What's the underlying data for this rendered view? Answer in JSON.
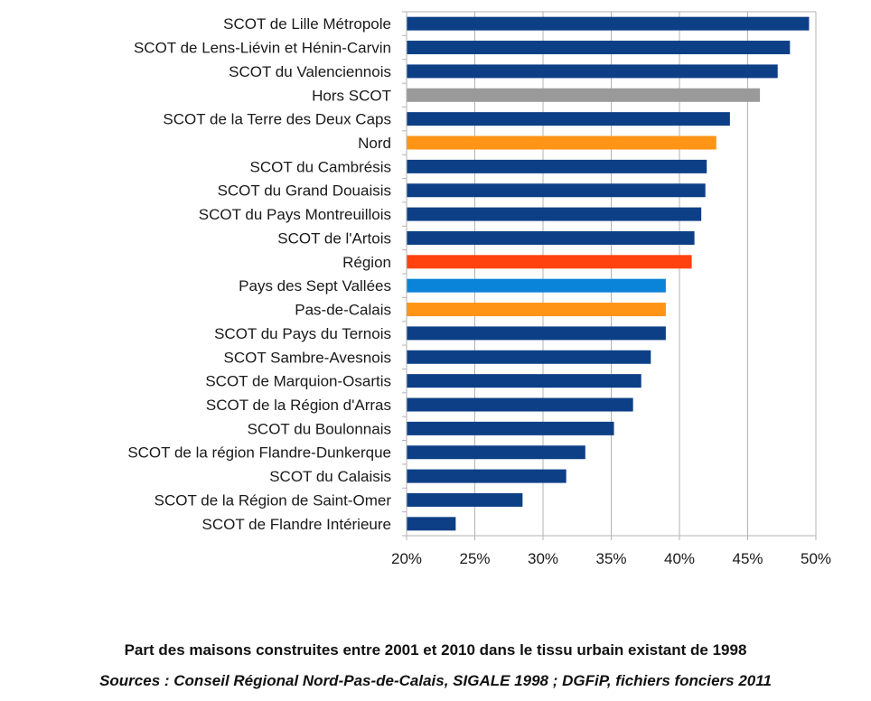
{
  "chart_data": {
    "type": "bar",
    "orientation": "horizontal",
    "categories": [
      "SCOT de Lille Métropole",
      "SCOT de Lens-Liévin et Hénin-Carvin",
      "SCOT du Valenciennois",
      "Hors SCOT",
      "SCOT de la Terre des Deux Caps",
      "Nord",
      "SCOT du Cambrésis",
      "SCOT du Grand Douaisis",
      "SCOT du Pays Montreuillois",
      "SCOT de l'Artois",
      "Région",
      "Pays des Sept Vallées",
      "Pas-de-Calais",
      "SCOT du Pays du Ternois",
      "SCOT Sambre-Avesnois",
      "SCOT de Marquion-Osartis",
      "SCOT de la Région d'Arras",
      "SCOT du Boulonnais",
      "SCOT de la région Flandre-Dunkerque",
      "SCOT du Calaisis",
      "SCOT de la Région de Saint-Omer",
      "SCOT de Flandre Intérieure"
    ],
    "values": [
      49.5,
      48.1,
      47.2,
      45.9,
      43.7,
      42.7,
      42.0,
      41.9,
      41.6,
      41.1,
      40.9,
      39.0,
      39.0,
      39.0,
      37.9,
      37.2,
      36.6,
      35.2,
      33.1,
      31.7,
      28.5,
      23.6
    ],
    "bar_colors": [
      "#0d3f86",
      "#0d3f86",
      "#0d3f86",
      "#9a9a9a",
      "#0d3f86",
      "#ff9416",
      "#0d3f86",
      "#0d3f86",
      "#0d3f86",
      "#0d3f86",
      "#ff420e",
      "#0a84d8",
      "#ff9416",
      "#0d3f86",
      "#0d3f86",
      "#0d3f86",
      "#0d3f86",
      "#0d3f86",
      "#0d3f86",
      "#0d3f86",
      "#0d3f86",
      "#0d3f86"
    ],
    "xlim": [
      20,
      50
    ],
    "xticks": [
      20,
      25,
      30,
      35,
      40,
      45,
      50
    ],
    "xtick_labels": [
      "20%",
      "25%",
      "30%",
      "35%",
      "40%",
      "45%",
      "50%"
    ],
    "xlabel": "",
    "ylabel": "",
    "grid": "vertical",
    "legend": "none"
  },
  "caption": {
    "title": "Part des maisons construites entre 2001 et 2010 dans le tissu urbain existant de 1998",
    "source": "Sources : Conseil Régional Nord-Pas-de-Calais, SIGALE 1998 ; DGFiP, fichiers fonciers 2011"
  }
}
